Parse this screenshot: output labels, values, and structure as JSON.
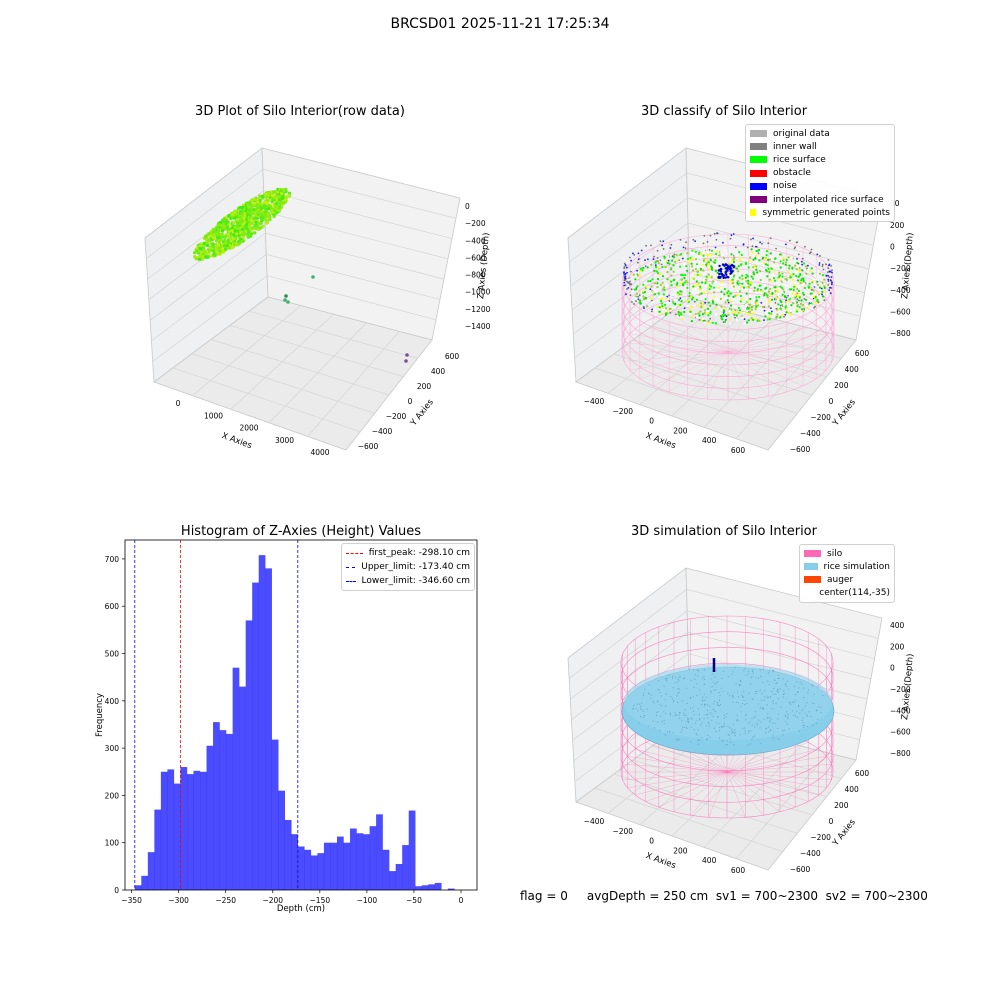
{
  "figure": {
    "suptitle": "BRCSD01 2025-11-21 17:25:34"
  },
  "footer": {
    "text": "flag = 0     avgDepth = 250 cm  sv1 = 700~2300  sv2 = 700~2300"
  },
  "chart_data": [
    {
      "type": "scatter3d",
      "title": "3D Plot of Silo Interior(row data)",
      "xlabel": "X Axies",
      "ylabel": "Y Axies",
      "zlabel": "Z Axies (Depth)",
      "x_ticks": [
        "0",
        "1000",
        "2000",
        "3000",
        "4000"
      ],
      "y_ticks": [
        "600",
        "400",
        "200",
        "0",
        "−200",
        "−400",
        "−600"
      ],
      "z_ticks": [
        "0",
        "−200",
        "−400",
        "−600",
        "−800",
        "−1000",
        "−1200",
        "−1400"
      ],
      "outliers": [
        {
          "x": 620,
          "y": -450,
          "z": -800
        },
        {
          "x": 420,
          "y": -600,
          "z": -1000
        },
        {
          "x": 4100,
          "y": 200,
          "z": -1450
        }
      ]
    },
    {
      "type": "scatter3d",
      "title": "3D classify of Silo Interior",
      "xlabel": "X Axies",
      "ylabel": "Y Axies",
      "zlabel": "Z Axies (Depth)",
      "x_ticks": [
        "−400",
        "−200",
        "0",
        "200",
        "400",
        "600"
      ],
      "y_ticks": [
        "600",
        "400",
        "200",
        "0",
        "−200",
        "−400",
        "−600"
      ],
      "z_ticks": [
        "200",
        "0",
        "−200",
        "−400",
        "−600",
        "−800"
      ],
      "z_top_partial": "00",
      "legend": [
        {
          "label": "original data",
          "color": "#b0b0b0"
        },
        {
          "label": "inner wall",
          "color": "#808080"
        },
        {
          "label": "rice surface",
          "color": "#00ff00"
        },
        {
          "label": "obstacle",
          "color": "#ff0000"
        },
        {
          "label": "noise",
          "color": "#0000ff"
        },
        {
          "label": "interpolated rice surface",
          "color": "#800080"
        },
        {
          "label": "symmetric generated points",
          "color": "#ffff00"
        }
      ]
    },
    {
      "type": "bar",
      "title": "Histogram of Z-Axies (Height) Values",
      "xlabel": "Depth (cm)",
      "ylabel": "Frequency",
      "xlim": [
        -357,
        17
      ],
      "ylim": [
        0,
        740
      ],
      "x_ticks": [
        -350,
        -300,
        -250,
        -200,
        -150,
        -100,
        -50,
        0
      ],
      "y_ticks": [
        0,
        100,
        200,
        300,
        400,
        500,
        600,
        700
      ],
      "bin_width": 6.93,
      "bin_start": -346.6,
      "values": [
        10,
        30,
        80,
        170,
        250,
        255,
        225,
        260,
        245,
        252,
        250,
        305,
        355,
        338,
        330,
        470,
        430,
        570,
        650,
        708,
        680,
        318,
        210,
        148,
        118,
        92,
        85,
        73,
        78,
        100,
        100,
        113,
        100,
        130,
        120,
        118,
        135,
        160,
        85,
        40,
        55,
        95,
        168,
        8,
        10,
        12,
        15,
        0,
        3
      ],
      "bar_color": "#0000ff",
      "reference_lines": [
        {
          "label": "first_peak: -298.10 cm",
          "x": -298.1,
          "color": "#ff0000"
        },
        {
          "label": "Upper_limit: -173.40 cm",
          "x": -173.4,
          "color": "#0000ff"
        },
        {
          "label": "Lower_limit: -346.60 cm",
          "x": -346.6,
          "color": "#0000ff"
        }
      ]
    },
    {
      "type": "surface3d",
      "title": "3D simulation of Silo Interior",
      "xlabel": "X Axies",
      "ylabel": "Y Axies",
      "zlabel": "Z Axies (Depth)",
      "x_ticks": [
        "−400",
        "−200",
        "0",
        "200",
        "400",
        "600"
      ],
      "y_ticks": [
        "600",
        "400",
        "200",
        "0",
        "−200",
        "−400",
        "−600"
      ],
      "z_ticks": [
        "400",
        "200",
        "0",
        "−200",
        "−400",
        "−600",
        "−800"
      ],
      "legend": [
        {
          "label": "silo",
          "color": "#ff69b4"
        },
        {
          "label": "rice simulation",
          "color": "#87ceeb"
        },
        {
          "label": "auger",
          "color": "#ff4500"
        },
        {
          "label": "center(114,-35)",
          "color": ""
        }
      ]
    }
  ]
}
